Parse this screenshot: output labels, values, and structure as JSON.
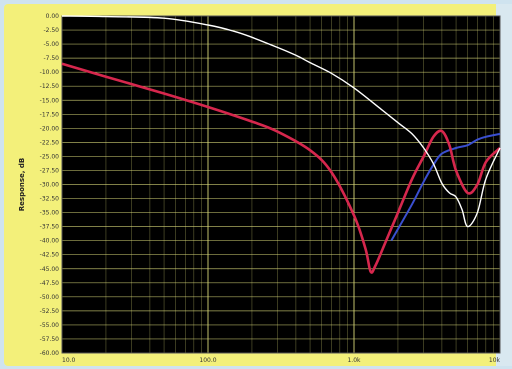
{
  "chart_data": {
    "type": "line",
    "title": "",
    "xlabel": "",
    "ylabel": "Response, dB",
    "xscale": "log",
    "xlim": [
      10,
      10000
    ],
    "ylim": [
      -60,
      0
    ],
    "grid": true,
    "background": "#000000",
    "grid_color": "#d8d878",
    "y_ticks": [
      "0.00",
      "-2.50",
      "-5.00",
      "-7.50",
      "-10.00",
      "-12.50",
      "-15.00",
      "-17.50",
      "-20.00",
      "-22.50",
      "-25.00",
      "-27.50",
      "-30.00",
      "-32.50",
      "-35.00",
      "-37.50",
      "-40.00",
      "-42.50",
      "-45.00",
      "-47.50",
      "-50.00",
      "-52.50",
      "-55.00",
      "-57.50",
      "-60.00"
    ],
    "y_tick_values": [
      0,
      -2.5,
      -5,
      -7.5,
      -10,
      -12.5,
      -15,
      -17.5,
      -20,
      -22.5,
      -25,
      -27.5,
      -30,
      -32.5,
      -35,
      -37.5,
      -40,
      -42.5,
      -45,
      -47.5,
      -50,
      -52.5,
      -55,
      -57.5,
      -60
    ],
    "x_ticks": [
      "10.0",
      "100.0",
      "1.0k",
      "10k"
    ],
    "x_tick_values": [
      10,
      100,
      1000,
      10000
    ],
    "series": [
      {
        "color": "#ffffff",
        "x": [
          10,
          20,
          50,
          100,
          150,
          200,
          300,
          400,
          500,
          700,
          1000,
          1500,
          2000,
          2500,
          3000,
          3500,
          4000,
          4500,
          5000,
          5500,
          6000,
          7000,
          8000,
          10000
        ],
        "y": [
          0,
          -0.1,
          -0.4,
          -1.6,
          -2.7,
          -3.8,
          -5.6,
          -7.0,
          -8.3,
          -10.2,
          -12.8,
          -16.4,
          -19.0,
          -21.0,
          -23.5,
          -26.3,
          -29.8,
          -31.5,
          -32.2,
          -34.5,
          -37.5,
          -35.0,
          -29.0,
          -23.5
        ]
      },
      {
        "color": "#d6274d",
        "x": [
          10,
          20,
          50,
          100,
          200,
          300,
          500,
          700,
          1000,
          1200,
          1300,
          1400,
          1600,
          2000,
          2500,
          3000,
          3500,
          4000,
          4500,
          5000,
          6000,
          7000,
          8000,
          10000
        ],
        "y": [
          -8.5,
          -10.8,
          -13.8,
          -16.2,
          -18.8,
          -20.6,
          -23.9,
          -27.8,
          -35.5,
          -41.5,
          -45.5,
          -44.5,
          -41.0,
          -35.0,
          -29.0,
          -25.0,
          -21.5,
          -20.5,
          -23.0,
          -27.5,
          -31.5,
          -30.0,
          -26.0,
          -23.5
        ]
      },
      {
        "color": "#3a4fd0",
        "x": [
          1800,
          2500,
          3000,
          3500,
          4000,
          5000,
          6000,
          7000,
          8000,
          10000
        ],
        "y": [
          -40.0,
          -33.5,
          -29.5,
          -26.5,
          -24.5,
          -23.5,
          -23.0,
          -22.0,
          -21.5,
          -21.0
        ]
      }
    ]
  }
}
